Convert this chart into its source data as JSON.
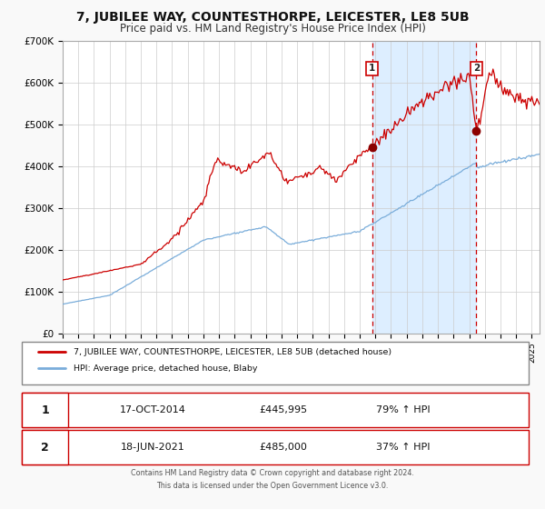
{
  "title": "7, JUBILEE WAY, COUNTESTHORPE, LEICESTER, LE8 5UB",
  "subtitle": "Price paid vs. HM Land Registry's House Price Index (HPI)",
  "title_fontsize": 10,
  "subtitle_fontsize": 8.5,
  "ylim": [
    0,
    700000
  ],
  "xlim_start": 1995.0,
  "xlim_end": 2025.5,
  "yticks": [
    0,
    100000,
    200000,
    300000,
    400000,
    500000,
    600000,
    700000
  ],
  "ytick_labels": [
    "£0",
    "£100K",
    "£200K",
    "£300K",
    "£400K",
    "£500K",
    "£600K",
    "£700K"
  ],
  "background_color": "#f9f9f9",
  "plot_bg_color": "#ffffff",
  "shaded_region_color": "#ddeeff",
  "grid_color": "#cccccc",
  "red_line_color": "#cc0000",
  "blue_line_color": "#7aadda",
  "point1_x": 2014.79,
  "point1_y": 445995,
  "point2_x": 2021.46,
  "point2_y": 485000,
  "vline1_x": 2014.79,
  "vline2_x": 2021.46,
  "legend_label_red": "7, JUBILEE WAY, COUNTESTHORPE, LEICESTER, LE8 5UB (detached house)",
  "legend_label_blue": "HPI: Average price, detached house, Blaby",
  "table_rows": [
    {
      "num": "1",
      "date": "17-OCT-2014",
      "price": "£445,995",
      "change": "79% ↑ HPI"
    },
    {
      "num": "2",
      "date": "18-JUN-2021",
      "price": "£485,000",
      "change": "37% ↑ HPI"
    }
  ],
  "footnote1": "Contains HM Land Registry data © Crown copyright and database right 2024.",
  "footnote2": "This data is licensed under the Open Government Licence v3.0."
}
